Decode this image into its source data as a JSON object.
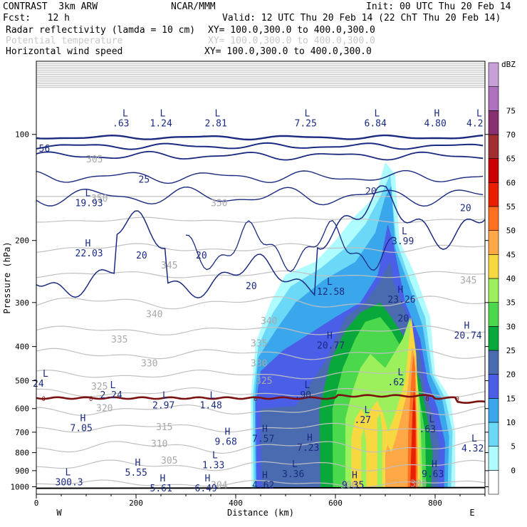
{
  "header": {
    "model": "CONTRAST  3km ARW",
    "center": "NCAR/MMM",
    "init": "Init: 00 UTC Thu 20 Feb 14",
    "fcst": "Fcst:   12 h",
    "valid": "Valid: 12 UTC Thu 20 Feb 14 (22 ChT Thu 20 Feb 14)",
    "fields": [
      {
        "name": "Radar reflectivity (lamda = 10 cm)",
        "xy": "XY= 100.0,300.0 to 400.0,300.0"
      },
      {
        "name": "Potential temperature",
        "xy": "XY= 100.0,300.0 to 400.0,300.0"
      },
      {
        "name": "Horizontal wind speed",
        "xy": "XY= 100.0,300.0 to 400.0,300.0"
      }
    ]
  },
  "chart_data": {
    "type": "heatmap",
    "xlabel": "Distance (km)",
    "ylabel": "Pressure (hPa)",
    "xlim": [
      0,
      900
    ],
    "ylim": [
      1050,
      62
    ],
    "y_scale": "log",
    "x_ticks": [
      0,
      200,
      400,
      600,
      800
    ],
    "y_ticks": [
      100,
      200,
      300,
      400,
      500,
      600,
      700,
      800,
      900,
      1000
    ],
    "x_end_labels": {
      "left": "W",
      "right": "E"
    },
    "colorbar": {
      "unit": "dBZ",
      "levels": [
        0,
        5,
        10,
        15,
        20,
        25,
        30,
        35,
        40,
        45,
        50,
        55,
        60,
        65,
        70,
        75
      ],
      "colors": [
        "#ffffff",
        "#9ff7ff",
        "#5cc6f7",
        "#2e8ee6",
        "#4451e6",
        "#4f6fb4",
        "#00a000",
        "#3ad43a",
        "#88ee44",
        "#ffe040",
        "#ffb040",
        "#ff7a1a",
        "#ff4a00",
        "#ff1a00",
        "#cc0000",
        "#a02a2a",
        "#8a1f6a",
        "#b060c0",
        "#c890d0"
      ],
      "colors_used": [
        "#ffffff",
        "#aefcff",
        "#6cd8f8",
        "#3aa6ec",
        "#4a5ee8",
        "#4a6bb0",
        "#08a83a",
        "#4cd84c",
        "#9cf05c",
        "#f8d840",
        "#ffa848",
        "#ff7020",
        "#e82000",
        "#c80000",
        "#a03030",
        "#883070",
        "#b070c0",
        "#c8a0d8"
      ]
    },
    "reflectivity_columns": [
      {
        "x": [
          440,
          582
        ],
        "top_p": 580,
        "dbz": 20
      },
      {
        "x": [
          452,
          580
        ],
        "top_p": 590,
        "dbz": 25
      },
      {
        "x": [
          500,
          570
        ],
        "top_p": 600,
        "dbz": 30
      },
      {
        "x": [
          565,
          630
        ],
        "top_p": 420,
        "dbz": 30
      },
      {
        "x": [
          610,
          655
        ],
        "top_p": 520,
        "dbz": 35
      },
      {
        "x": [
          660,
          700
        ],
        "top_p": 610,
        "dbz": 40
      },
      {
        "x": [
          745,
          790
        ],
        "top_p": 300,
        "dbz": 40
      },
      {
        "x": [
          752,
          782
        ],
        "top_p": 470,
        "dbz": 50
      },
      {
        "x": [
          758,
          775
        ],
        "top_p": 420,
        "dbz": 55
      }
    ],
    "freezing_level_label": "0",
    "freezing_level_p": 560,
    "theta_labels": [
      {
        "t": "305",
        "x": 100,
        "p": 120
      },
      {
        "t": "350",
        "x": 110,
        "p": 155
      },
      {
        "t": "350",
        "x": 350,
        "p": 160
      },
      {
        "t": "345",
        "x": 250,
        "p": 240
      },
      {
        "t": "345",
        "x": 850,
        "p": 265
      },
      {
        "t": "340",
        "x": 220,
        "p": 330
      },
      {
        "t": "340",
        "x": 450,
        "p": 345
      },
      {
        "t": "335",
        "x": 150,
        "p": 390
      },
      {
        "t": "335",
        "x": 430,
        "p": 400
      },
      {
        "t": "330",
        "x": 210,
        "p": 455
      },
      {
        "t": "330",
        "x": 430,
        "p": 455
      },
      {
        "t": "325",
        "x": 110,
        "p": 530
      },
      {
        "t": "325",
        "x": 440,
        "p": 510
      },
      {
        "t": "320",
        "x": 120,
        "p": 610
      },
      {
        "t": "315",
        "x": 240,
        "p": 690
      },
      {
        "t": "310",
        "x": 230,
        "p": 770
      },
      {
        "t": "305",
        "x": 250,
        "p": 860
      },
      {
        "t": "300",
        "x": 610,
        "p": 1010
      },
      {
        "t": "304",
        "x": 350,
        "p": 1010
      },
      {
        "t": "300",
        "x": 750,
        "p": 1000
      }
    ],
    "wind_labels": [
      {
        "t": "56",
        "x": 5,
        "p": 112
      },
      {
        "t": "25",
        "x": 205,
        "p": 137
      },
      {
        "t": "20",
        "x": 660,
        "p": 148
      },
      {
        "t": "20",
        "x": 850,
        "p": 165
      },
      {
        "t": "20",
        "x": 200,
        "p": 225
      },
      {
        "t": "20",
        "x": 320,
        "p": 225
      },
      {
        "t": "20",
        "x": 420,
        "p": 275
      },
      {
        "t": "20",
        "x": 725,
        "p": 340
      }
    ],
    "extrema_labels": [
      {
        "hl": "L",
        "v": ".63",
        "x": 170,
        "p": 95
      },
      {
        "hl": "L",
        "v": "1.24",
        "x": 245,
        "p": 95
      },
      {
        "hl": "L",
        "v": "2.81",
        "x": 355,
        "p": 95
      },
      {
        "hl": "L",
        "v": "7.25",
        "x": 535,
        "p": 95
      },
      {
        "hl": "L",
        "v": "6.84",
        "x": 675,
        "p": 95
      },
      {
        "hl": "H",
        "v": "4.80",
        "x": 795,
        "p": 95
      },
      {
        "hl": "L",
        "v": "4.2",
        "x": 880,
        "p": 95
      },
      {
        "hl": "L",
        "v": "19.93",
        "x": 95,
        "p": 160
      },
      {
        "hl": "H",
        "v": "22.03",
        "x": 95,
        "p": 222
      },
      {
        "hl": "L",
        "v": "3.99",
        "x": 730,
        "p": 205
      },
      {
        "hl": "L",
        "v": "12.58",
        "x": 580,
        "p": 285
      },
      {
        "hl": "H",
        "v": "23.26",
        "x": 722,
        "p": 300
      },
      {
        "hl": "H",
        "v": "20.74",
        "x": 855,
        "p": 380
      },
      {
        "hl": "H",
        "v": "20.77",
        "x": 580,
        "p": 405
      },
      {
        "hl": "L",
        "v": "24",
        "x": 10,
        "p": 520
      },
      {
        "hl": "L",
        "v": "2.24",
        "x": 145,
        "p": 560
      },
      {
        "hl": "L",
        "v": ".90",
        "x": 535,
        "p": 560
      },
      {
        "hl": "L",
        "v": ".62",
        "x": 722,
        "p": 515
      },
      {
        "hl": "L",
        "v": "2.97",
        "x": 250,
        "p": 600
      },
      {
        "hl": "L",
        "v": "1.48",
        "x": 345,
        "p": 600
      },
      {
        "hl": "L",
        "v": ".27",
        "x": 655,
        "p": 660
      },
      {
        "hl": "H",
        "v": "7.05",
        "x": 85,
        "p": 695
      },
      {
        "hl": "L",
        "v": ".63",
        "x": 785,
        "p": 700
      },
      {
        "hl": "H",
        "v": "9.68",
        "x": 375,
        "p": 760
      },
      {
        "hl": "H",
        "v": "7.57",
        "x": 450,
        "p": 745
      },
      {
        "hl": "H",
        "v": "7.23",
        "x": 540,
        "p": 790
      },
      {
        "hl": "L",
        "v": "4.32",
        "x": 870,
        "p": 795
      },
      {
        "hl": "L",
        "v": "1.33",
        "x": 350,
        "p": 885
      },
      {
        "hl": "H",
        "v": "5.55",
        "x": 195,
        "p": 930
      },
      {
        "hl": "L",
        "v": "3.36",
        "x": 510,
        "p": 940
      },
      {
        "hl": "H",
        "v": "9.63",
        "x": 790,
        "p": 940
      },
      {
        "hl": "L",
        "v": "300.3",
        "x": 55,
        "p": 990
      },
      {
        "hl": "H",
        "v": "5.61",
        "x": 245,
        "p": 1030
      },
      {
        "hl": "H",
        "v": "6.49",
        "x": 335,
        "p": 1030
      },
      {
        "hl": "H",
        "v": "4.62",
        "x": 450,
        "p": 1010
      },
      {
        "hl": "H",
        "v": "9.35",
        "x": 630,
        "p": 1010
      }
    ]
  }
}
